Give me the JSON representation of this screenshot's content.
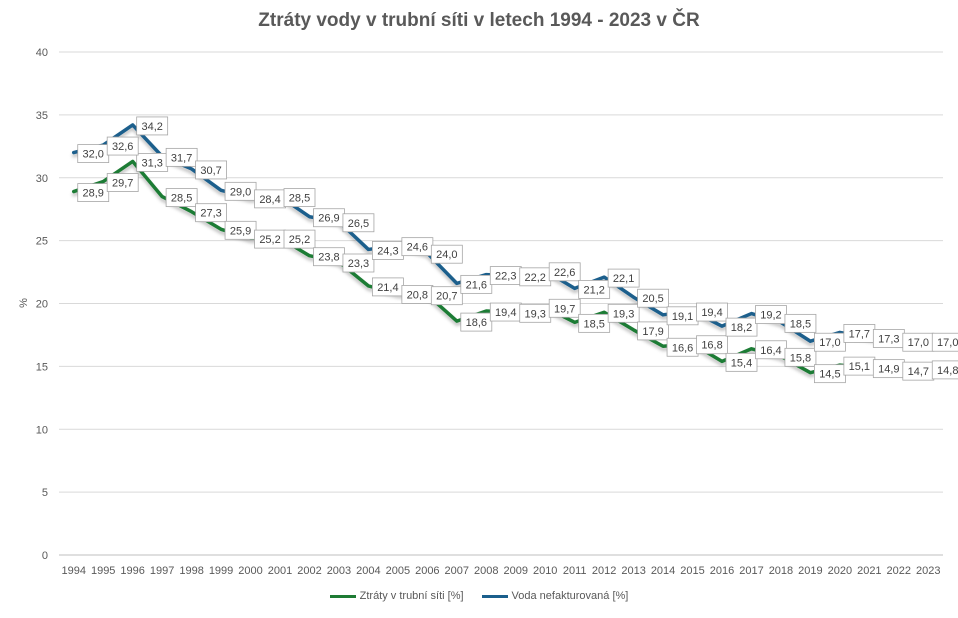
{
  "chart_data": {
    "type": "line",
    "title": "Ztráty vody v trubní síti v letech 1994 - 2023 v ČR",
    "xlabel": "",
    "ylabel": "%",
    "ylim": [
      0,
      40
    ],
    "yticks": [
      0,
      5,
      10,
      15,
      20,
      25,
      30,
      35,
      40
    ],
    "grid": true,
    "legend_position": "bottom",
    "categories": [
      "1994",
      "1995",
      "1996",
      "1997",
      "1998",
      "1999",
      "2000",
      "2001",
      "2002",
      "2003",
      "2004",
      "2005",
      "2006",
      "2007",
      "2008",
      "2009",
      "2010",
      "2011",
      "2012",
      "2013",
      "2014",
      "2015",
      "2016",
      "2017",
      "2018",
      "2019",
      "2020",
      "2021",
      "2022",
      "2023"
    ],
    "series": [
      {
        "name": "Ztráty v trubní síti [%]",
        "color": "#1e7b34",
        "values": [
          28.9,
          29.7,
          31.3,
          28.5,
          27.3,
          25.9,
          25.2,
          25.2,
          23.8,
          23.3,
          21.4,
          20.8,
          20.7,
          18.6,
          19.4,
          19.3,
          19.7,
          18.5,
          19.3,
          17.9,
          16.6,
          16.8,
          15.4,
          16.4,
          15.8,
          14.5,
          15.1,
          14.9,
          14.7,
          14.8
        ],
        "labels": [
          "28,9",
          "29,7",
          "31,3",
          "28,5",
          "27,3",
          "25,9",
          "25,2",
          "25,2",
          "23,8",
          "23,3",
          "21,4",
          "20,8",
          "20,7",
          "18,6",
          "19,4",
          "19,3",
          "19,7",
          "18,5",
          "19,3",
          "17,9",
          "16,6",
          "16,8",
          "15,4",
          "16,4",
          "15,8",
          "14,5",
          "15,1",
          "14,9",
          "14,7",
          "14,8"
        ]
      },
      {
        "name": "Voda nefakturovaná [%]",
        "color": "#1b5f8c",
        "values": [
          32.0,
          32.6,
          34.2,
          31.7,
          30.7,
          29.0,
          28.4,
          28.5,
          26.9,
          26.5,
          24.3,
          24.6,
          24.0,
          21.6,
          22.3,
          22.2,
          22.6,
          21.2,
          22.1,
          20.5,
          19.1,
          19.4,
          18.2,
          19.2,
          18.5,
          17.0,
          17.7,
          17.3,
          17.0,
          17.0
        ],
        "labels": [
          "32,0",
          "32,6",
          "34,2",
          "31,7",
          "30,7",
          "29,0",
          "28,4",
          "28,5",
          "26,9",
          "26,5",
          "24,3",
          "24,6",
          "24,0",
          "21,6",
          "22,3",
          "22,2",
          "22,6",
          "21,2",
          "22,1",
          "20,5",
          "19,1",
          "19,4",
          "18,2",
          "19,2",
          "18,5",
          "17,0",
          "17,7",
          "17,3",
          "17,0",
          "17,0"
        ]
      }
    ]
  }
}
